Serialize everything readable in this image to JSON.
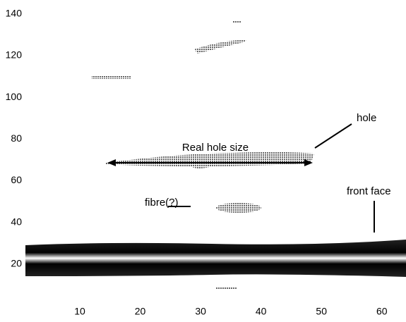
{
  "chart_data": {
    "type": "image",
    "xlim": [
      1,
      64
    ],
    "ylim": [
      2,
      146
    ],
    "xticks": [
      10,
      20,
      30,
      40,
      50,
      60
    ],
    "yticks": [
      20,
      40,
      60,
      80,
      100,
      120,
      140
    ],
    "grid": false,
    "annotations": [
      "Real hole size",
      "hole",
      "fibre(?)",
      "front face"
    ]
  }
}
